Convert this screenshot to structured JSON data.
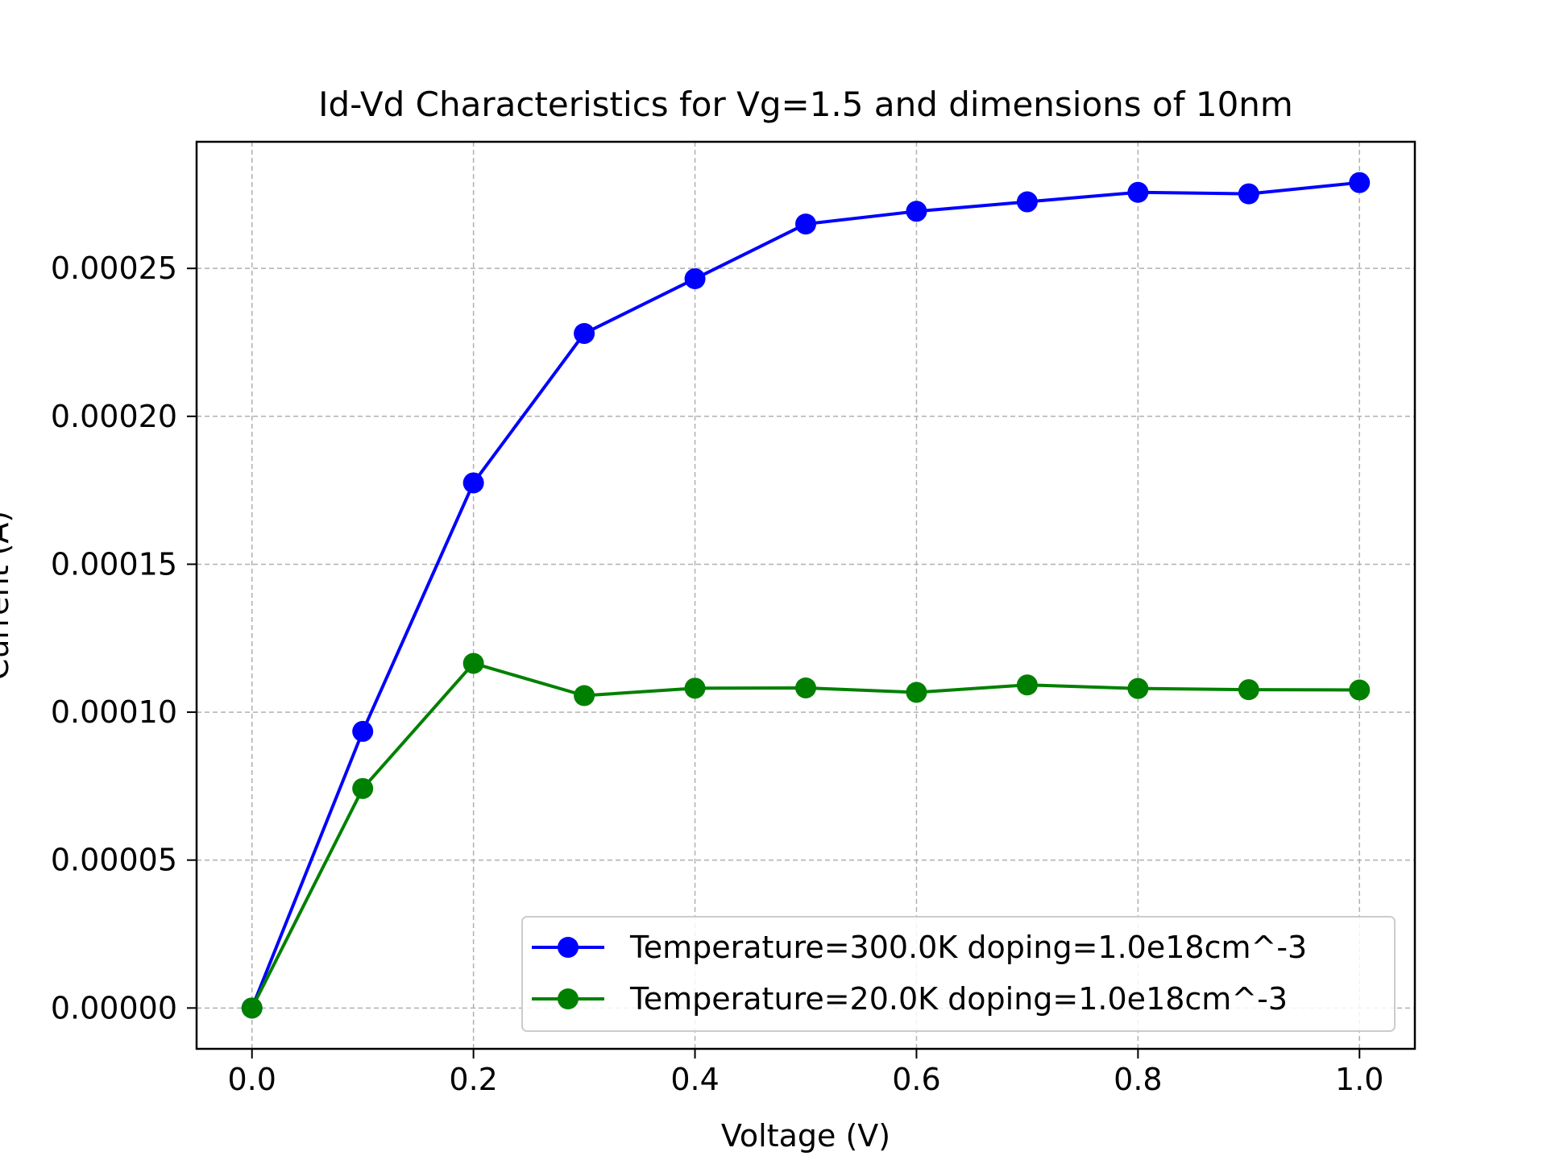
{
  "chart_data": {
    "type": "line",
    "title": "Id-Vd Characteristics for Vg=1.5 and dimensions of 10nm",
    "xlabel": "Voltage (V)",
    "ylabel": "Current (A)",
    "xlim": [
      -0.05,
      1.05
    ],
    "ylim": [
      -1.38e-05,
      0.0002928
    ],
    "x_ticks": [
      0.0,
      0.2,
      0.4,
      0.6,
      0.8,
      1.0
    ],
    "x_tick_labels": [
      "0.0",
      "0.2",
      "0.4",
      "0.6",
      "0.8",
      "1.0"
    ],
    "y_ticks": [
      0.0,
      5e-05,
      0.0001,
      0.00015,
      0.0002,
      0.00025
    ],
    "y_tick_labels": [
      "0.00000",
      "0.00005",
      "0.00010",
      "0.00015",
      "0.00020",
      "0.00025"
    ],
    "grid": true,
    "legend_position": "lower-right",
    "x": [
      0.0,
      0.1,
      0.2,
      0.3,
      0.4,
      0.5,
      0.6,
      0.7,
      0.8,
      0.9,
      1.0
    ],
    "series": [
      {
        "name": "Temperature=300.0K doping=1.0e18cm^-3",
        "color": "#0000ff",
        "marker": "circle",
        "values": [
          0.0,
          9.35e-05,
          0.0001775,
          0.000228,
          0.0002465,
          0.000265,
          0.0002693,
          0.0002725,
          0.0002757,
          0.0002752,
          0.000279
        ]
      },
      {
        "name": "Temperature=20.0K doping=1.0e18cm^-3",
        "color": "#008000",
        "marker": "circle",
        "values": [
          0.0,
          7.42e-05,
          0.0001165,
          0.0001056,
          0.0001081,
          0.0001082,
          0.0001067,
          0.0001092,
          0.000108,
          0.0001076,
          0.0001075
        ]
      }
    ]
  }
}
